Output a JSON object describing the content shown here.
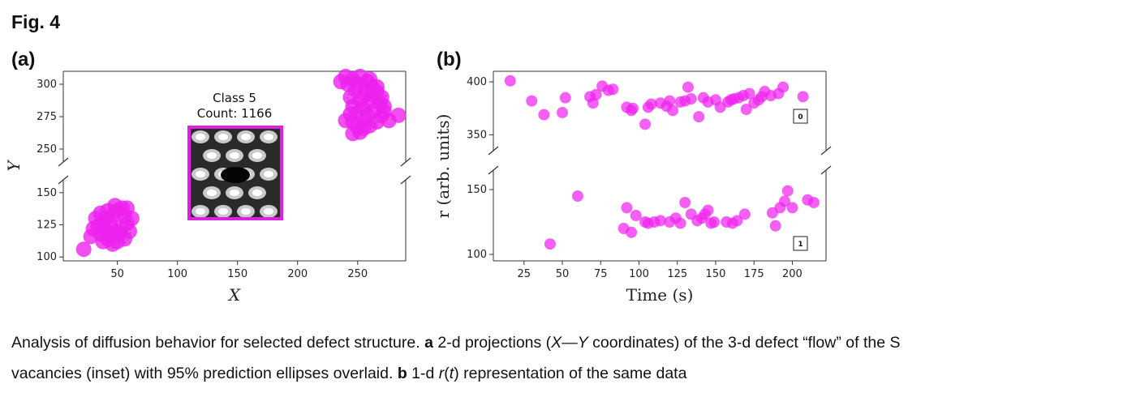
{
  "figure": {
    "title": "Fig. 4",
    "caption": {
      "p1": "Analysis of diffusion behavior for selected defect structure. ",
      "b1": "a",
      "p2": " 2-d projections (",
      "i1": "X",
      "p3": "—",
      "i2": "Y",
      "p4": " coordinates) of the 3-d defect “flow” of the S",
      "p5": "vacancies (inset) with 95% prediction ellipses overlaid. ",
      "b2": "b",
      "p6": " 1-d ",
      "i3": "r",
      "p7": "(",
      "i4": "t",
      "p8": ") representation of the same data"
    }
  },
  "colors": {
    "marker": "#ee22ee",
    "inset_border": "#e020e0",
    "axis": "#333333"
  },
  "chart_data": [
    {
      "panel": "(a)",
      "type": "scatter",
      "xlabel": "X",
      "ylabel": "Y",
      "broken_y_axis": true,
      "xlim": [
        5,
        290
      ],
      "ylim_upper": [
        240,
        310
      ],
      "ylim_lower": [
        97,
        160
      ],
      "xticks": [
        50,
        100,
        150,
        200,
        250
      ],
      "yticks_upper": [
        250,
        275,
        300
      ],
      "yticks_lower": [
        100,
        125,
        150
      ],
      "inset": {
        "line1": "Class 5",
        "line2": "Count: 1166"
      },
      "clusters": [
        {
          "name": "upper",
          "points": [
            [
              240,
              306
            ],
            [
              246,
              304
            ],
            [
              252,
              306
            ],
            [
              258,
              302
            ],
            [
              262,
              298
            ],
            [
              266,
              294
            ],
            [
              270,
              290
            ],
            [
              272,
              283
            ],
            [
              270,
              276
            ],
            [
              266,
              271
            ],
            [
              260,
              268
            ],
            [
              255,
              266
            ],
            [
              250,
              267
            ],
            [
              246,
              271
            ],
            [
              244,
              277
            ],
            [
              246,
              283
            ],
            [
              252,
              288
            ],
            [
              256,
              292
            ],
            [
              248,
              296
            ],
            [
              242,
              300
            ],
            [
              236,
              302
            ],
            [
              260,
              286
            ],
            [
              264,
              280
            ],
            [
              258,
              276
            ],
            [
              254,
              282
            ],
            [
              250,
              278
            ],
            [
              262,
              292
            ],
            [
              268,
              286
            ],
            [
              272,
              279
            ],
            [
              276,
              272
            ],
            [
              284,
              276
            ],
            [
              256,
              272
            ],
            [
              246,
              262
            ],
            [
              252,
              263
            ],
            [
              240,
              272
            ],
            [
              258,
              296
            ],
            [
              250,
              300
            ],
            [
              244,
              290
            ],
            [
              266,
              298
            ],
            [
              260,
              304
            ]
          ]
        },
        {
          "name": "lower",
          "points": [
            [
              22,
              106
            ],
            [
              28,
              116
            ],
            [
              30,
              122
            ],
            [
              32,
              130
            ],
            [
              36,
              134
            ],
            [
              38,
              126
            ],
            [
              40,
              120
            ],
            [
              42,
              114
            ],
            [
              46,
              110
            ],
            [
              50,
              112
            ],
            [
              48,
              120
            ],
            [
              44,
              126
            ],
            [
              46,
              132
            ],
            [
              50,
              136
            ],
            [
              54,
              138
            ],
            [
              56,
              132
            ],
            [
              58,
              126
            ],
            [
              60,
              120
            ],
            [
              56,
              114
            ],
            [
              52,
              118
            ],
            [
              38,
              112
            ],
            [
              34,
              124
            ],
            [
              42,
              136
            ],
            [
              48,
              140
            ],
            [
              58,
              138
            ],
            [
              62,
              130
            ],
            [
              40,
              130
            ],
            [
              36,
              118
            ],
            [
              54,
              124
            ],
            [
              44,
              118
            ]
          ]
        }
      ]
    },
    {
      "panel": "(b)",
      "type": "scatter",
      "xlabel": "Time (s)",
      "ylabel": "r (arb. units)",
      "broken_y_axis": true,
      "xlim": [
        5,
        222
      ],
      "ylim_upper": [
        335,
        410
      ],
      "ylim_lower": [
        95,
        165
      ],
      "xticks": [
        25,
        50,
        75,
        100,
        125,
        150,
        175,
        200
      ],
      "yticks_upper": [
        350,
        400
      ],
      "yticks_lower": [
        100,
        150
      ],
      "series": [
        {
          "badge": "0",
          "points": [
            [
              16,
              401
            ],
            [
              30,
              382
            ],
            [
              38,
              369
            ],
            [
              50,
              371
            ],
            [
              52,
              385
            ],
            [
              68,
              386
            ],
            [
              70,
              380
            ],
            [
              72,
              388
            ],
            [
              76,
              396
            ],
            [
              80,
              392
            ],
            [
              83,
              393
            ],
            [
              92,
              376
            ],
            [
              95,
              373
            ],
            [
              96,
              375
            ],
            [
              104,
              360
            ],
            [
              106,
              376
            ],
            [
              108,
              379
            ],
            [
              114,
              380
            ],
            [
              118,
              377
            ],
            [
              120,
              382
            ],
            [
              122,
              373
            ],
            [
              127,
              381
            ],
            [
              130,
              382
            ],
            [
              132,
              395
            ],
            [
              134,
              384
            ],
            [
              139,
              367
            ],
            [
              142,
              385
            ],
            [
              145,
              381
            ],
            [
              150,
              383
            ],
            [
              153,
              376
            ],
            [
              158,
              381
            ],
            [
              160,
              383
            ],
            [
              162,
              384
            ],
            [
              165,
              385
            ],
            [
              168,
              387
            ],
            [
              170,
              374
            ],
            [
              172,
              389
            ],
            [
              175,
              380
            ],
            [
              178,
              383
            ],
            [
              180,
              386
            ],
            [
              182,
              391
            ],
            [
              186,
              387
            ],
            [
              191,
              389
            ],
            [
              194,
              395
            ],
            [
              207,
              386
            ]
          ]
        },
        {
          "badge": "1",
          "points": [
            [
              42,
              108
            ],
            [
              60,
              145
            ],
            [
              90,
              120
            ],
            [
              92,
              136
            ],
            [
              95,
              117
            ],
            [
              98,
              130
            ],
            [
              104,
              125
            ],
            [
              106,
              124
            ],
            [
              110,
              125
            ],
            [
              114,
              126
            ],
            [
              120,
              125
            ],
            [
              124,
              128
            ],
            [
              127,
              124
            ],
            [
              130,
              140
            ],
            [
              134,
              131
            ],
            [
              138,
              126
            ],
            [
              141,
              128
            ],
            [
              143,
              131
            ],
            [
              145,
              134
            ],
            [
              147,
              124
            ],
            [
              149,
              125
            ],
            [
              157,
              125
            ],
            [
              161,
              124
            ],
            [
              164,
              126
            ],
            [
              169,
              131
            ],
            [
              187,
              132
            ],
            [
              189,
              122
            ],
            [
              192,
              136
            ],
            [
              195,
              141
            ],
            [
              197,
              149
            ],
            [
              200,
              136
            ],
            [
              210,
              142
            ],
            [
              214,
              140
            ]
          ]
        }
      ]
    }
  ]
}
